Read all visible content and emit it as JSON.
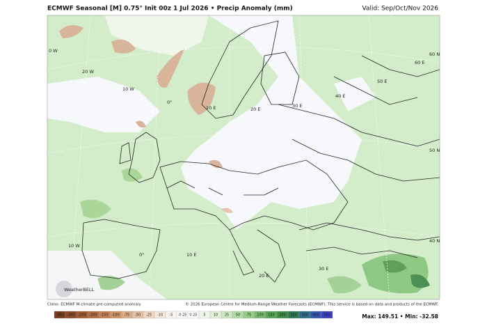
{
  "header": {
    "title": "ECMWF Seasonal [M] 0.75° Init 00z 1 Jul 2026 • Precip Anomaly (mm)",
    "valid": "Valid: Sep/Oct/Nov 2026"
  },
  "grid_labels": [
    "0 W",
    "20 W",
    "10 W",
    "0°",
    "10 E",
    "20 E",
    "30 E",
    "40 E",
    "50 E",
    "60 E",
    "60 N",
    "50 N",
    "40 N",
    "10 W",
    "0°",
    "10 E",
    "20 E",
    "30 E"
  ],
  "footer": {
    "left": "Climo: ECMWF M-climate pre-computed anomaly",
    "right": "© 2026 European Centre for Medium-Range Weather Forecasts (ECMWF). This service is based on data and products of the ECMWF.",
    "logo": "WeatherBELL"
  },
  "colorbar": {
    "labels": [
      "-400",
      "-300",
      "-250",
      "-200",
      "-150",
      "-100",
      "-75",
      "-50",
      "-25",
      "-10",
      "-5",
      "-0.25",
      "0.25",
      "5",
      "10",
      "25",
      "50",
      "75",
      "100",
      "150",
      "200",
      "250",
      "300",
      "400",
      "500"
    ],
    "colors": [
      "#7a3b1e",
      "#8f4a26",
      "#a35a31",
      "#b56c40",
      "#c47f52",
      "#d09468",
      "#dcaa83",
      "#e6c0a2",
      "#efd6c3",
      "#f6e8dd",
      "#fbf4ee",
      "#ffffff",
      "#ffffff",
      "#eef7ea",
      "#dff0d7",
      "#cbe6c0",
      "#b3daa6",
      "#96ca88",
      "#79b86d",
      "#5aa456",
      "#3f8e47",
      "#2c7a52",
      "#2f6e8a",
      "#3357b0",
      "#3a3fc4"
    ]
  },
  "stats": "Max: 149.51 • Min: -32.58"
}
